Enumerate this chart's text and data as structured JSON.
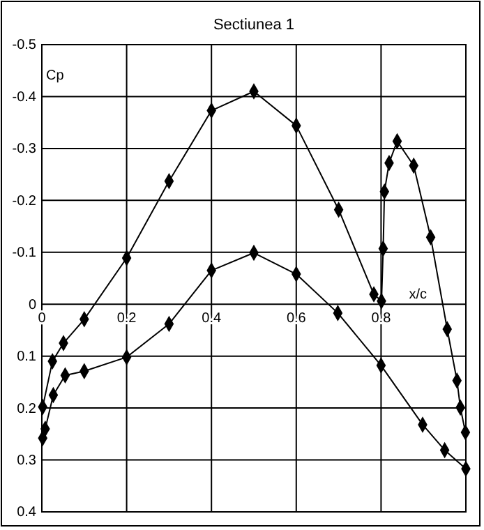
{
  "chart_data": {
    "type": "line",
    "title": "Sectiunea 1",
    "xlabel": "x/c",
    "ylabel": "Cp",
    "xlim": [
      0,
      1
    ],
    "xticks": [
      0,
      0.2,
      0.4,
      0.6,
      0.8
    ],
    "ylim": [
      0.4,
      -0.5
    ],
    "yticks": [
      -0.5,
      -0.4,
      -0.3,
      -0.2,
      -0.1,
      0,
      0.1,
      0.2,
      0.3,
      0.4
    ],
    "grid": true,
    "marker": "diamond",
    "line_style": "solid",
    "series": [
      {
        "color": "#000000",
        "x": [
          0.002,
          0.025,
          0.051,
          0.1,
          0.2,
          0.3,
          0.4,
          0.5,
          0.6,
          0.7,
          0.783,
          0.801,
          0.805,
          0.808,
          0.819,
          0.838,
          0.877,
          0.917,
          0.956,
          0.979,
          0.987,
          0.999
        ],
        "values": [
          0.198,
          0.11,
          0.075,
          0.029,
          -0.089,
          -0.237,
          -0.373,
          -0.41,
          -0.344,
          -0.182,
          -0.019,
          -0.006,
          -0.107,
          -0.217,
          -0.272,
          -0.314,
          -0.267,
          -0.129,
          0.048,
          0.147,
          0.199,
          0.247
        ]
      },
      {
        "color": "#000000",
        "x": [
          0.002,
          0.008,
          0.027,
          0.055,
          0.1,
          0.2,
          0.3,
          0.4,
          0.5,
          0.6,
          0.698,
          0.8,
          0.898,
          0.95,
          1.0
        ],
        "values": [
          0.258,
          0.24,
          0.175,
          0.137,
          0.129,
          0.102,
          0.038,
          -0.065,
          -0.099,
          -0.058,
          0.017,
          0.118,
          0.232,
          0.281,
          0.317
        ]
      }
    ]
  }
}
